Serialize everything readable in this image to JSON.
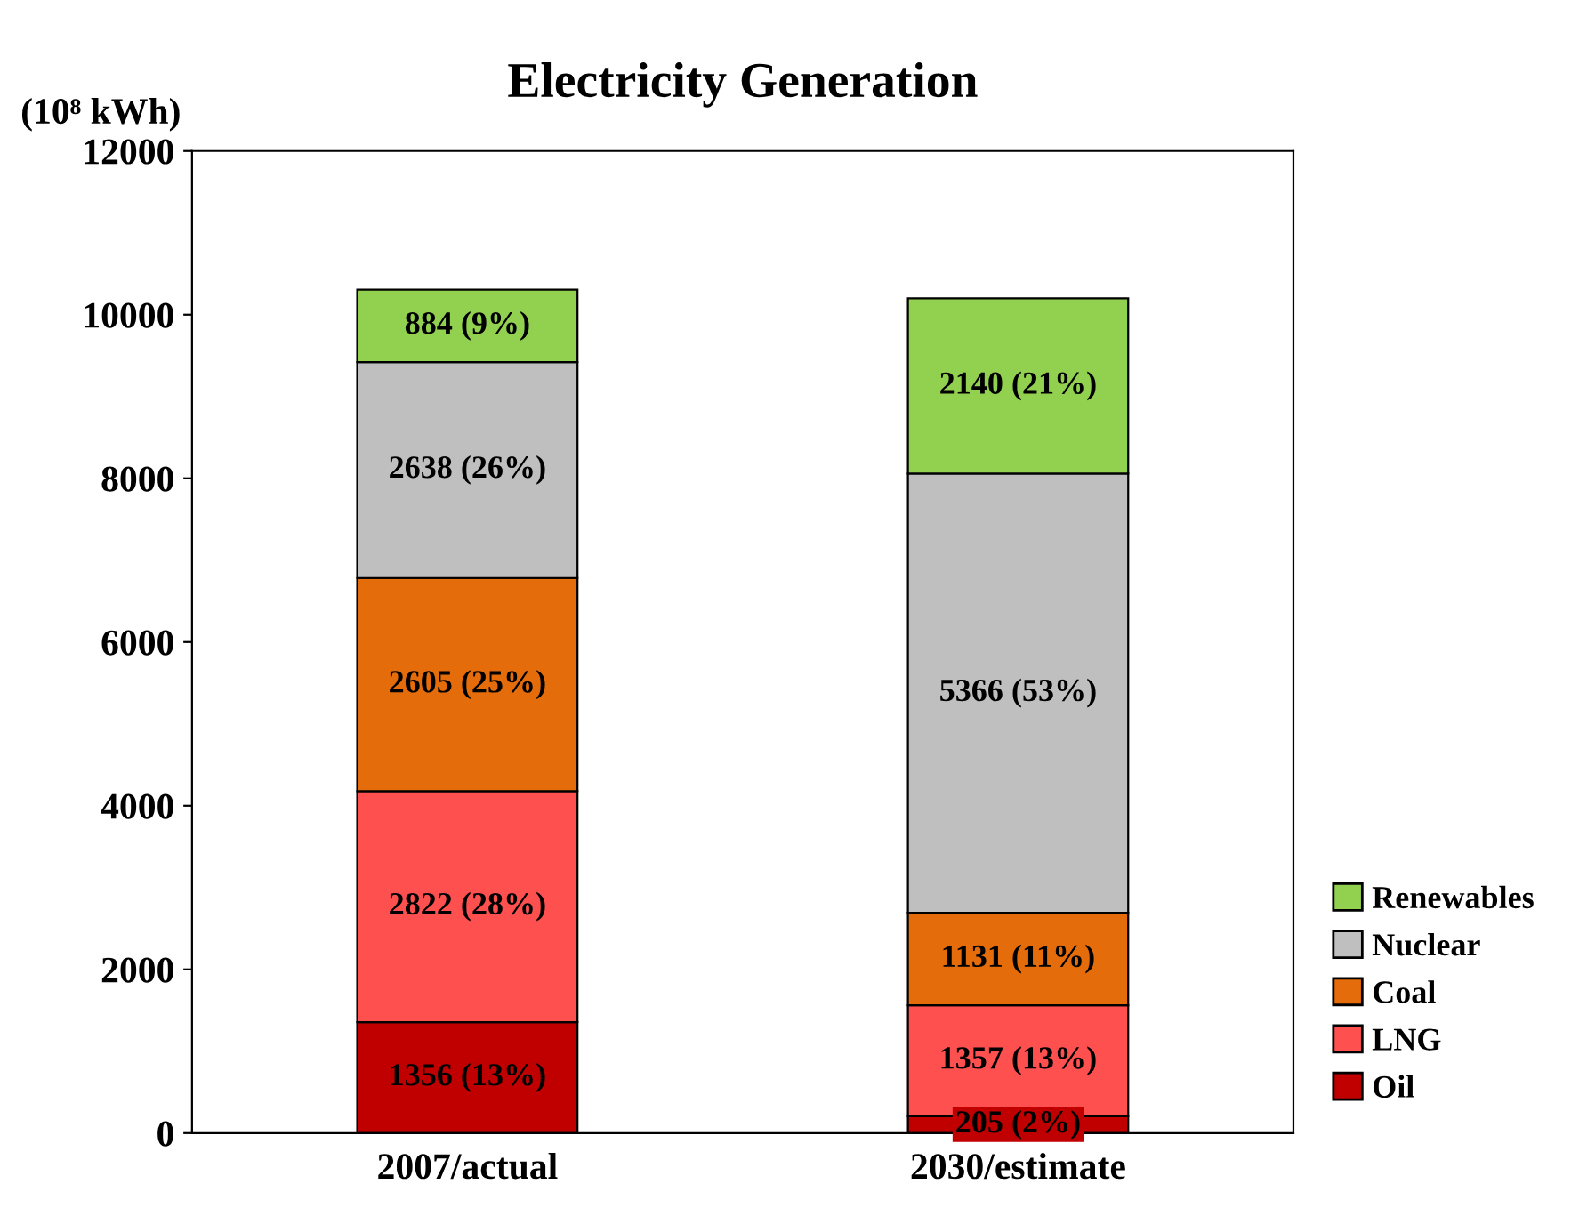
{
  "chart_data": {
    "type": "bar",
    "title": "Electricity Generation",
    "ylabel": "(10⁸ kWh)",
    "categories": [
      "2007/actual",
      "2030/estimate"
    ],
    "stacked": true,
    "series": [
      {
        "name": "Oil",
        "color": "#c00000",
        "values": [
          1356,
          205
        ],
        "value_labels": [
          "1356 (13%)",
          "205 (2%)"
        ]
      },
      {
        "name": "LNG",
        "color": "#ff5050",
        "values": [
          2822,
          1357
        ],
        "value_labels": [
          "2822 (28%)",
          "1357 (13%)"
        ]
      },
      {
        "name": "Coal",
        "color": "#e46c0a",
        "values": [
          2605,
          1131
        ],
        "value_labels": [
          "2605 (25%)",
          "1131 (11%)"
        ]
      },
      {
        "name": "Nuclear",
        "color": "#bfbfbf",
        "values": [
          2638,
          5366
        ],
        "value_labels": [
          "2638 (26%)",
          "5366 (53%)"
        ]
      },
      {
        "name": "Renewables",
        "color": "#92d050",
        "values": [
          884,
          2140
        ],
        "value_labels": [
          "884 (9%)",
          "2140 (21%)"
        ]
      }
    ],
    "ylim": [
      0,
      12000
    ],
    "yticks": [
      0,
      2000,
      4000,
      6000,
      8000,
      10000,
      12000
    ],
    "grid": false,
    "legend": "bottom right"
  }
}
